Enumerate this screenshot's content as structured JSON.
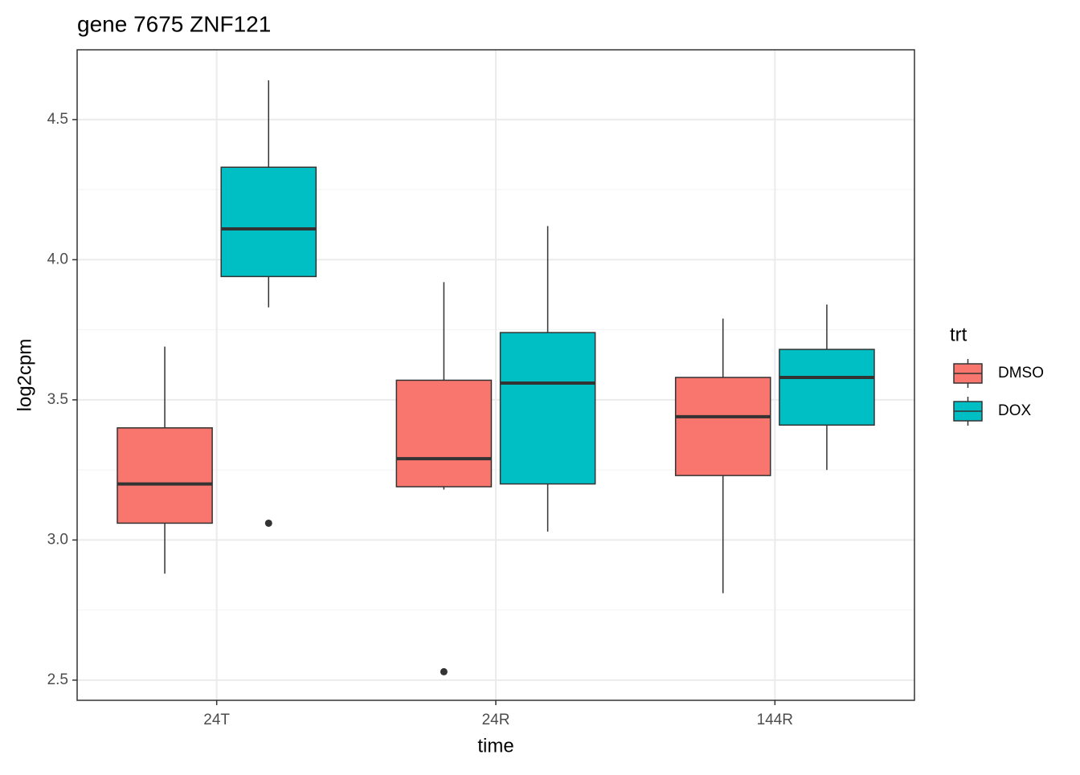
{
  "chart_data": {
    "type": "boxplot",
    "title": "gene 7675 ZNF121",
    "x_label": "time",
    "y_label": "log2cpm",
    "legend_title": "trt",
    "categories": [
      "24T",
      "24R",
      "144R"
    ],
    "series": [
      {
        "name": "DMSO",
        "color": "#f8766d",
        "min": [
          2.88,
          3.18,
          2.81
        ],
        "q1": [
          3.06,
          3.19,
          3.23
        ],
        "median": [
          3.2,
          3.29,
          3.44
        ],
        "q3": [
          3.4,
          3.57,
          3.58
        ],
        "max": [
          3.69,
          3.92,
          3.79
        ],
        "outliers": [
          [],
          [
            2.53
          ],
          []
        ]
      },
      {
        "name": "DOX",
        "color": "#00bfc4",
        "min": [
          3.83,
          3.03,
          3.25
        ],
        "q1": [
          3.94,
          3.2,
          3.41
        ],
        "median": [
          4.11,
          3.56,
          3.58
        ],
        "q3": [
          4.33,
          3.74,
          3.68
        ],
        "max": [
          4.64,
          4.12,
          3.84
        ],
        "outliers": [
          [
            3.06
          ],
          [],
          []
        ]
      }
    ],
    "ylim": [
      2.428,
      4.749
    ],
    "yticks": [
      2.5,
      {
        "value": 3,
        "label": "3.0"
      },
      3.5,
      {
        "value": 4,
        "label": "4.0"
      },
      4.5
    ],
    "grid": true
  }
}
